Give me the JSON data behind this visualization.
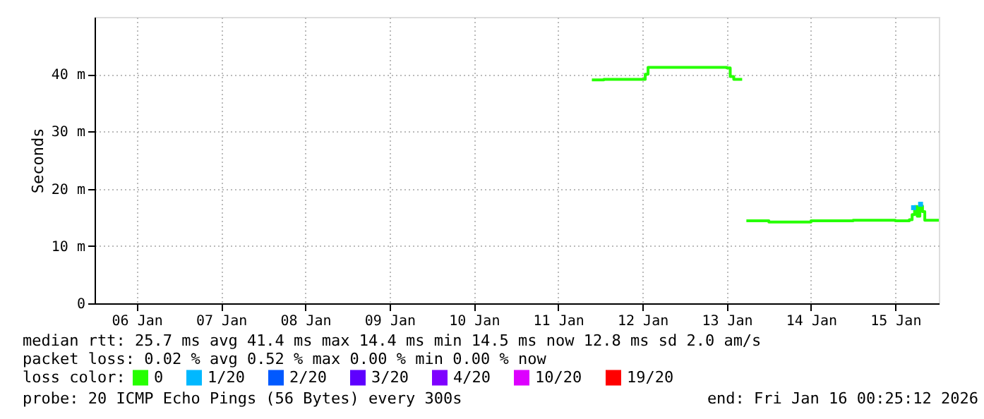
{
  "chart_data": {
    "type": "line",
    "ylabel": "Seconds",
    "legend_title": "loss color:",
    "legend": "bottom",
    "grid": true,
    "line_style": "solid",
    "x": [
      "2026-01-11T21:36",
      "2026-01-12T01:00",
      "2026-01-12T12:24",
      "2026-01-12T12:48",
      "2026-01-12T13:36",
      "2026-01-13T06:00",
      "2026-01-13T12:00",
      "2026-01-13T13:00",
      "2026-01-13T14:00",
      "2026-01-13T16:24",
      "2026-01-13T17:00",
      "2026-01-13T17:36",
      "2026-01-14T00:00",
      "2026-01-14T12:00",
      "2026-01-15T00:00",
      "2026-01-15T12:00",
      "2026-01-15T16:00",
      "2026-01-15T16:48",
      "2026-01-15T17:30",
      "2026-01-15T18:15",
      "2026-01-15T19:00",
      "2026-01-15T19:45",
      "2026-01-15T20:24",
      "2026-01-16T00:24"
    ],
    "series": [
      {
        "name": "0",
        "color": "#26ff00",
        "values": [
          39.0,
          39.1,
          39.1,
          40.0,
          41.2,
          41.2,
          41.1,
          39.6,
          39.1,
          39.1,
          null,
          14.4,
          14.2,
          14.4,
          14.5,
          14.4,
          14.6,
          15.5,
          16.9,
          15.2,
          17.0,
          16.0,
          14.5,
          14.5
        ]
      },
      {
        "name": "1/20",
        "color": "#00b8ff",
        "type": "scatter",
        "x": [
          "2026-01-15T17:12",
          "2026-01-15T19:12"
        ],
        "values": [
          16.7,
          17.3
        ]
      },
      {
        "name": "2/20",
        "color": "#0059ff",
        "values": [
          null,
          null,
          null,
          null,
          null,
          null,
          null,
          null,
          null,
          null,
          null,
          null,
          null,
          null,
          null,
          null,
          null,
          null,
          null,
          null,
          null,
          null,
          null,
          null
        ]
      },
      {
        "name": "3/20",
        "color": "#5e00ff",
        "values": [
          null,
          null,
          null,
          null,
          null,
          null,
          null,
          null,
          null,
          null,
          null,
          null,
          null,
          null,
          null,
          null,
          null,
          null,
          null,
          null,
          null,
          null,
          null,
          null
        ]
      },
      {
        "name": "4/20",
        "color": "#7e00ff",
        "values": [
          null,
          null,
          null,
          null,
          null,
          null,
          null,
          null,
          null,
          null,
          null,
          null,
          null,
          null,
          null,
          null,
          null,
          null,
          null,
          null,
          null,
          null,
          null,
          null
        ]
      },
      {
        "name": "10/20",
        "color": "#dd00ff",
        "values": [
          null,
          null,
          null,
          null,
          null,
          null,
          null,
          null,
          null,
          null,
          null,
          null,
          null,
          null,
          null,
          null,
          null,
          null,
          null,
          null,
          null,
          null,
          null,
          null
        ]
      },
      {
        "name": "19/20",
        "color": "#ff0000",
        "values": [
          null,
          null,
          null,
          null,
          null,
          null,
          null,
          null,
          null,
          null,
          null,
          null,
          null,
          null,
          null,
          null,
          null,
          null,
          null,
          null,
          null,
          null,
          null,
          null
        ]
      }
    ],
    "xlim": [
      "2026-01-06T00:00",
      "2026-01-16T00:24"
    ],
    "xticks": [
      {
        "value": "2026-01-06T12:00",
        "label": "06 Jan"
      },
      {
        "value": "2026-01-07T12:00",
        "label": "07 Jan"
      },
      {
        "value": "2026-01-08T12:00",
        "label": "08 Jan"
      },
      {
        "value": "2026-01-09T12:00",
        "label": "09 Jan"
      },
      {
        "value": "2026-01-10T12:00",
        "label": "10 Jan"
      },
      {
        "value": "2026-01-11T12:00",
        "label": "11 Jan"
      },
      {
        "value": "2026-01-12T12:00",
        "label": "12 Jan"
      },
      {
        "value": "2026-01-13T12:00",
        "label": "13 Jan"
      },
      {
        "value": "2026-01-14T12:00",
        "label": "14 Jan"
      },
      {
        "value": "2026-01-15T12:00",
        "label": "15 Jan"
      }
    ],
    "ylim": [
      0,
      50
    ],
    "yticks": [
      0,
      {
        "value": 10,
        "label": "10 m"
      },
      {
        "value": 20,
        "label": "20 m"
      },
      {
        "value": 30,
        "label": "30 m"
      },
      {
        "value": 40,
        "label": "40 m"
      }
    ],
    "annotations": [
      "median rtt:  25.7 ms avg  41.4 ms max  14.4 ms min  14.5 ms now  12.8 ms sd  2.0   am/s",
      "packet loss: 0.02 % avg  0.52 % max  0.00 % min  0.00 % now",
      "probe:       20 ICMP Echo Pings (56 Bytes) every 300s",
      "end: Fri Jan 16 00:25:12 2026"
    ]
  }
}
